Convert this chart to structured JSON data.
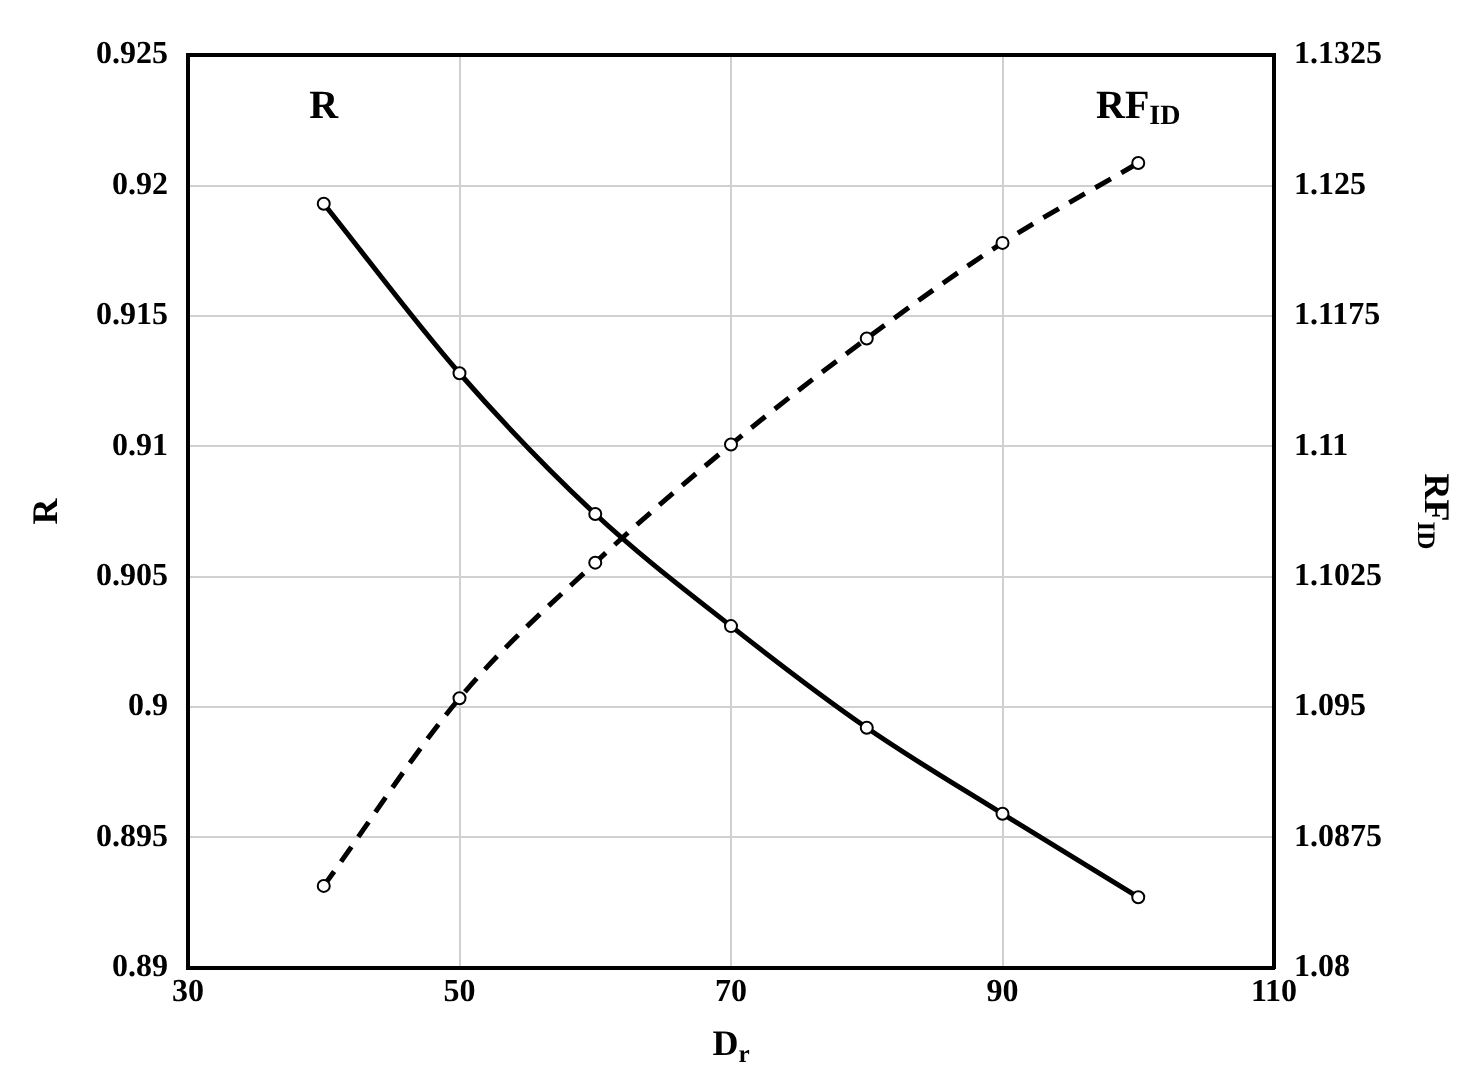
{
  "chart_data": {
    "type": "line",
    "xlabel": "D$_{r}$",
    "ylabel": "R",
    "y2label": "RF$_{ID}$",
    "x": [
      40,
      50,
      60,
      70,
      80,
      90,
      100
    ],
    "series": [
      {
        "name": "R",
        "color": "#000000",
        "line_style": "solid",
        "values": [
          0.9193,
          0.9128,
          0.9074,
          0.9031,
          0.8992,
          0.8959,
          0.8927
        ]
      },
      {
        "name": "RF$_{ID}$",
        "color": "#000000",
        "line_style": "dashed",
        "axis": "y2",
        "values": [
          1.0847,
          1.0955,
          1.1033,
          1.1101,
          1.1162,
          1.1217,
          1.1263
        ]
      }
    ],
    "xlim": [
      30,
      110
    ],
    "xticks": [
      30,
      50,
      70,
      90,
      110
    ],
    "ylim": [
      0.89,
      0.925
    ],
    "yticks": [
      0.89,
      0.895,
      0.9,
      0.905,
      0.91,
      0.915,
      0.92,
      0.925
    ],
    "y2lim": [
      1.08,
      1.1325
    ],
    "y2ticks": [
      1.08,
      1.0875,
      1.095,
      1.1025,
      1.11,
      1.1175,
      1.125,
      1.1325
    ],
    "grid": true,
    "legend": false,
    "marker": "circle"
  }
}
